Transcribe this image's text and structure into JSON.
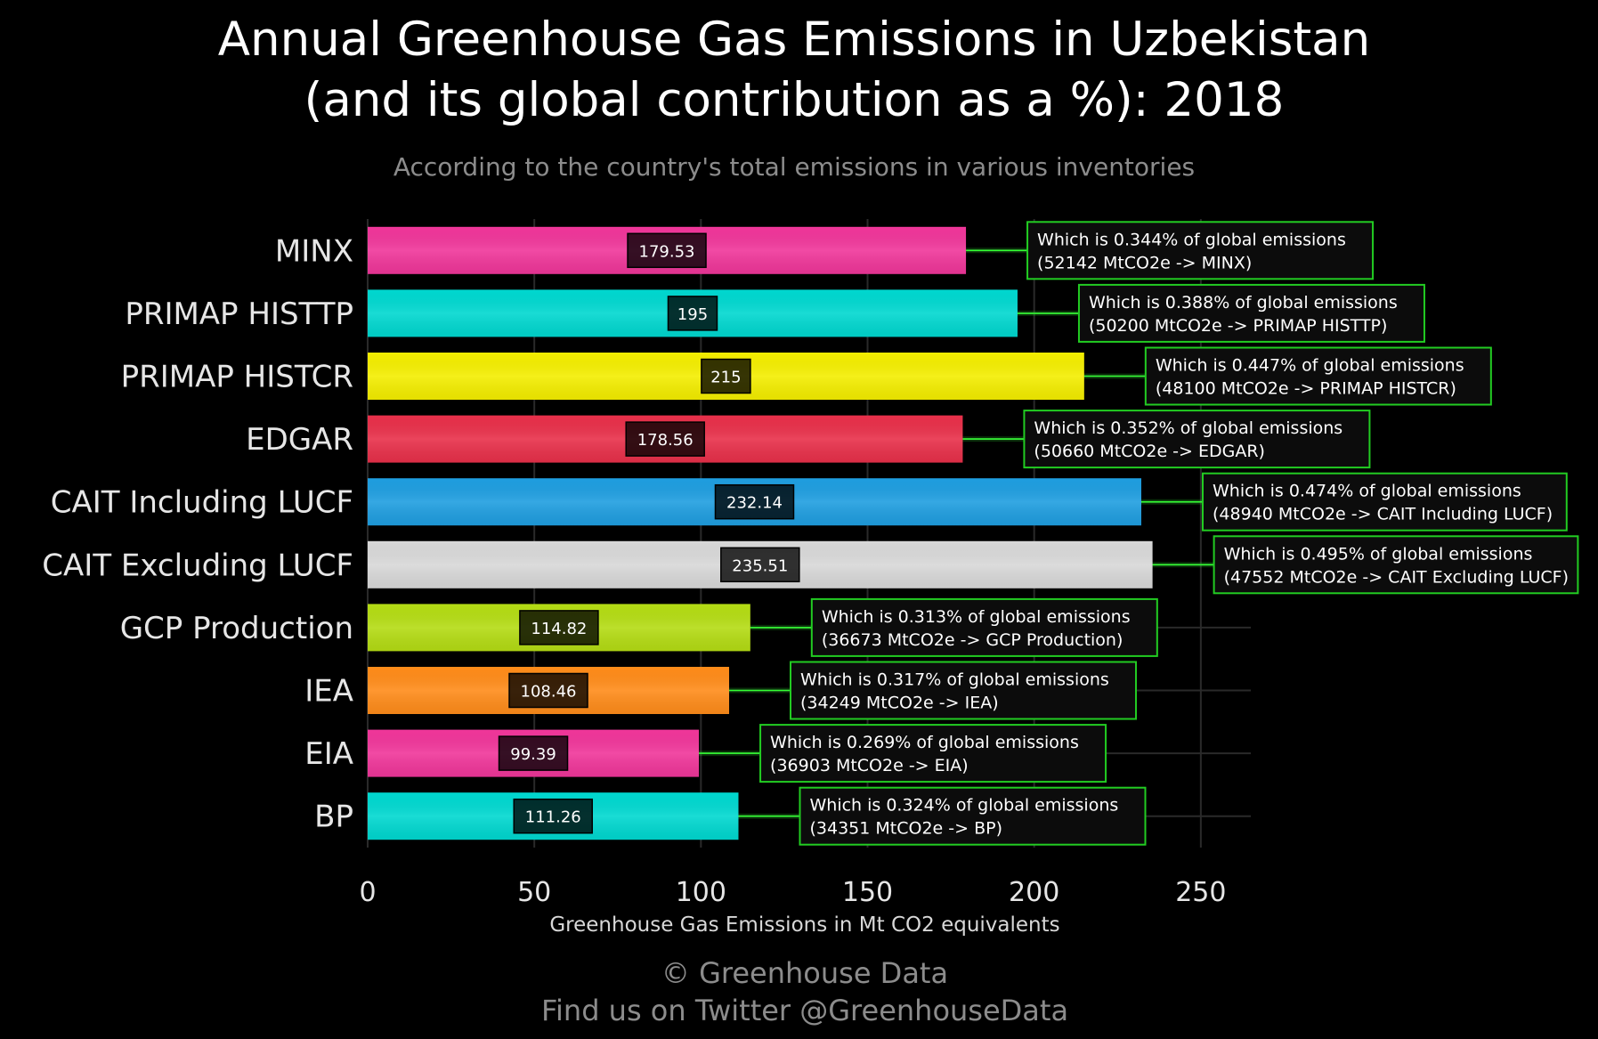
{
  "title_lines": [
    "Annual Greenhouse Gas Emissions in Uzbekistan",
    "(and its global contribution as a %): 2018"
  ],
  "subtitle": "According to the country's total emissions in various inventories",
  "footer": {
    "copyright": "© Greenhouse Data",
    "twitter": "Find us on Twitter @GreenhouseData"
  },
  "chart_data": {
    "type": "bar",
    "orientation": "horizontal",
    "title": "Annual Greenhouse Gas Emissions in Uzbekistan (and its global contribution as a %): 2018",
    "subtitle": "According to the country's total emissions in various inventories",
    "xlabel": "Greenhouse Gas Emissions in Mt CO2 equivalents",
    "ylabel": "",
    "xlim": [
      0,
      265
    ],
    "x_ticks": [
      0,
      50,
      100,
      150,
      200,
      250
    ],
    "grid": true,
    "categories": [
      "MINX",
      "PRIMAP HISTTP",
      "PRIMAP HISTCR",
      "EDGAR",
      "CAIT Including LUCF",
      "CAIT Excluding LUCF",
      "GCP Production",
      "IEA",
      "EIA",
      "BP"
    ],
    "values": [
      179.53,
      195,
      215,
      178.56,
      232.14,
      235.51,
      114.82,
      108.46,
      99.39,
      111.26
    ],
    "value_labels": [
      "179.53",
      "195",
      "215",
      "178.56",
      "232.14",
      "235.51",
      "114.82",
      "108.46",
      "99.39",
      "111.26"
    ],
    "colors": [
      "#f0369a",
      "#00d8d0",
      "#f4ee00",
      "#e8304a",
      "#1f9ee0",
      "#d8d8d8",
      "#b4dc14",
      "#ff8c1a",
      "#f0369a",
      "#00d8d0"
    ],
    "annotations": [
      {
        "line1": "Which is 0.344% of global emissions",
        "line2": "(52142 MtCO2e -> MINX)"
      },
      {
        "line1": "Which is 0.388% of global emissions",
        "line2": "(50200 MtCO2e -> PRIMAP HISTTP)"
      },
      {
        "line1": "Which is 0.447% of global emissions",
        "line2": "(48100 MtCO2e -> PRIMAP HISTCR)"
      },
      {
        "line1": "Which is 0.352% of global emissions",
        "line2": "(50660 MtCO2e -> EDGAR)"
      },
      {
        "line1": "Which is 0.474% of global emissions",
        "line2": "(48940 MtCO2e -> CAIT Including LUCF)"
      },
      {
        "line1": "Which is 0.495% of global emissions",
        "line2": "(47552 MtCO2e -> CAIT Excluding LUCF)"
      },
      {
        "line1": "Which is 0.313% of global emissions",
        "line2": "(36673 MtCO2e -> GCP Production)"
      },
      {
        "line1": "Which is 0.317% of global emissions",
        "line2": "(34249 MtCO2e -> IEA)"
      },
      {
        "line1": "Which is 0.269% of global emissions",
        "line2": "(36903 MtCO2e -> EIA)"
      },
      {
        "line1": "Which is 0.324% of global emissions",
        "line2": "(34351 MtCO2e -> BP)"
      }
    ],
    "annotation_border_color": "#22cc22",
    "connector_color": "#33ff33"
  }
}
